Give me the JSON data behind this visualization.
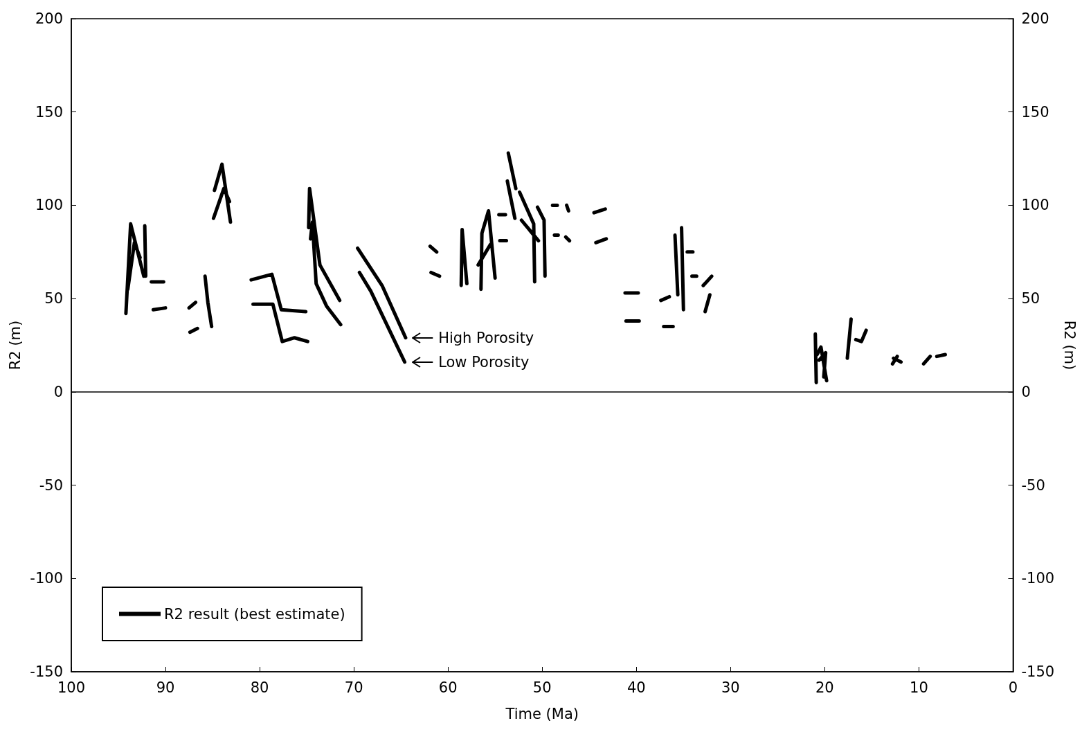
{
  "chart_data": {
    "type": "line",
    "xlabel": "Time (Ma)",
    "ylabel": "R2 (m)",
    "y2label": "R2 (m)",
    "xlim": [
      100,
      0
    ],
    "xticks": [
      100,
      90,
      80,
      70,
      60,
      50,
      40,
      30,
      20,
      10,
      0
    ],
    "ylim": [
      -150,
      200
    ],
    "yticks": [
      -150,
      -100,
      -50,
      0,
      50,
      100,
      150,
      200
    ],
    "y2lim": [
      -150,
      200
    ],
    "y2ticks": [
      -150,
      -100,
      -50,
      0,
      50,
      100,
      150,
      200
    ],
    "grid": false,
    "legend": "bottom left",
    "marker": "none",
    "line_style": "solid",
    "ref_lines": [
      {
        "axis": "y",
        "value": 0,
        "color": "#000000"
      }
    ],
    "annotations": [
      {
        "text": "High Porosity",
        "x": 64.5,
        "y": 29
      },
      {
        "text": "Low Porosity",
        "x": 64.5,
        "y": 16
      }
    ],
    "series": [
      {
        "name": "R2 result (best estimate)",
        "color": "#000000",
        "x": [
          94.2,
          93.7,
          92.3,
          null,
          92.2,
          92.1,
          null,
          94.0,
          93.3,
          92.7,
          null,
          91.5,
          90.2,
          null,
          91.3,
          90.0,
          null,
          87.5,
          86.8,
          null,
          87.4,
          86.6,
          null,
          85.8,
          85.5,
          85.1,
          null,
          84.8,
          84.0,
          83.1,
          null,
          84.9,
          83.8,
          83.2,
          null,
          80.9,
          78.7,
          77.7,
          75.1,
          null,
          80.7,
          78.6,
          77.6,
          76.3,
          74.9,
          null,
          74.8,
          74.7,
          73.6,
          71.5,
          null,
          74.6,
          74.4,
          74.0,
          72.9,
          71.4,
          null,
          69.6,
          67.0,
          64.5,
          null,
          69.4,
          68.2,
          64.6,
          null,
          61.9,
          61.2,
          null,
          61.8,
          60.9,
          null,
          58.6,
          58.5,
          58.0,
          null,
          56.5,
          56.4,
          55.7,
          55.0,
          null,
          56.8,
          55.5,
          null,
          54.6,
          53.9,
          null,
          54.5,
          53.8,
          null,
          53.6,
          52.8,
          null,
          53.7,
          52.9,
          null,
          52.4,
          50.9,
          50.8,
          null,
          50.5,
          49.8,
          49.7,
          null,
          52.2,
          50.4,
          null,
          48.9,
          48.4,
          null,
          47.4,
          47.2,
          null,
          48.7,
          48.3,
          null,
          47.5,
          47.1,
          null,
          44.5,
          43.3,
          null,
          44.3,
          43.2,
          null,
          41.2,
          39.8,
          null,
          41.1,
          39.7,
          null,
          37.4,
          36.5,
          null,
          37.1,
          36.1,
          null,
          35.2,
          35.0,
          null,
          35.9,
          35.6,
          null,
          34.6,
          34.0,
          null,
          34.1,
          33.6,
          null,
          32.9,
          32.0,
          null,
          32.7,
          32.2,
          null,
          21.0,
          20.9,
          null,
          20.8,
          20.4,
          19.8,
          null,
          20.6,
          19.9,
          20.1,
          null,
          17.2,
          17.6,
          null,
          16.7,
          16.1,
          15.6,
          null,
          12.7,
          11.9,
          null,
          12.8,
          12.3,
          null,
          9.5,
          8.8,
          null,
          8.1,
          7.2
        ],
        "values": [
          42,
          90,
          62,
          null,
          89,
          62,
          null,
          55,
          80,
          72,
          null,
          59,
          59,
          null,
          44,
          45,
          null,
          45,
          48,
          null,
          32,
          34,
          null,
          62,
          48,
          35,
          null,
          108,
          122,
          91,
          null,
          93,
          109,
          102,
          null,
          60,
          63,
          44,
          43,
          null,
          47,
          47,
          27,
          29,
          27,
          null,
          88,
          109,
          68,
          49,
          null,
          82,
          91,
          58,
          46,
          36,
          null,
          77,
          57,
          29,
          null,
          64,
          54,
          16,
          null,
          78,
          75,
          null,
          64,
          62,
          null,
          57,
          87,
          58,
          null,
          55,
          85,
          97,
          61,
          null,
          68,
          79,
          null,
          95,
          95,
          null,
          81,
          81,
          null,
          128,
          109,
          null,
          113,
          93,
          null,
          107,
          90,
          59,
          null,
          99,
          92,
          62,
          null,
          92,
          81,
          null,
          100,
          100,
          null,
          100,
          97,
          null,
          84,
          84,
          null,
          83,
          81,
          null,
          96,
          98,
          null,
          80,
          82,
          null,
          53,
          53,
          null,
          38,
          38,
          null,
          49,
          51,
          null,
          35,
          35,
          null,
          88,
          44,
          null,
          84,
          52,
          null,
          75,
          75,
          null,
          62,
          62,
          null,
          57,
          62,
          null,
          43,
          52,
          null,
          31,
          5,
          null,
          20,
          24,
          6,
          null,
          17,
          21,
          8,
          null,
          39,
          18,
          null,
          28,
          27,
          33,
          null,
          18,
          16,
          null,
          15,
          19,
          null,
          15,
          19,
          null,
          19,
          20
        ]
      }
    ]
  }
}
